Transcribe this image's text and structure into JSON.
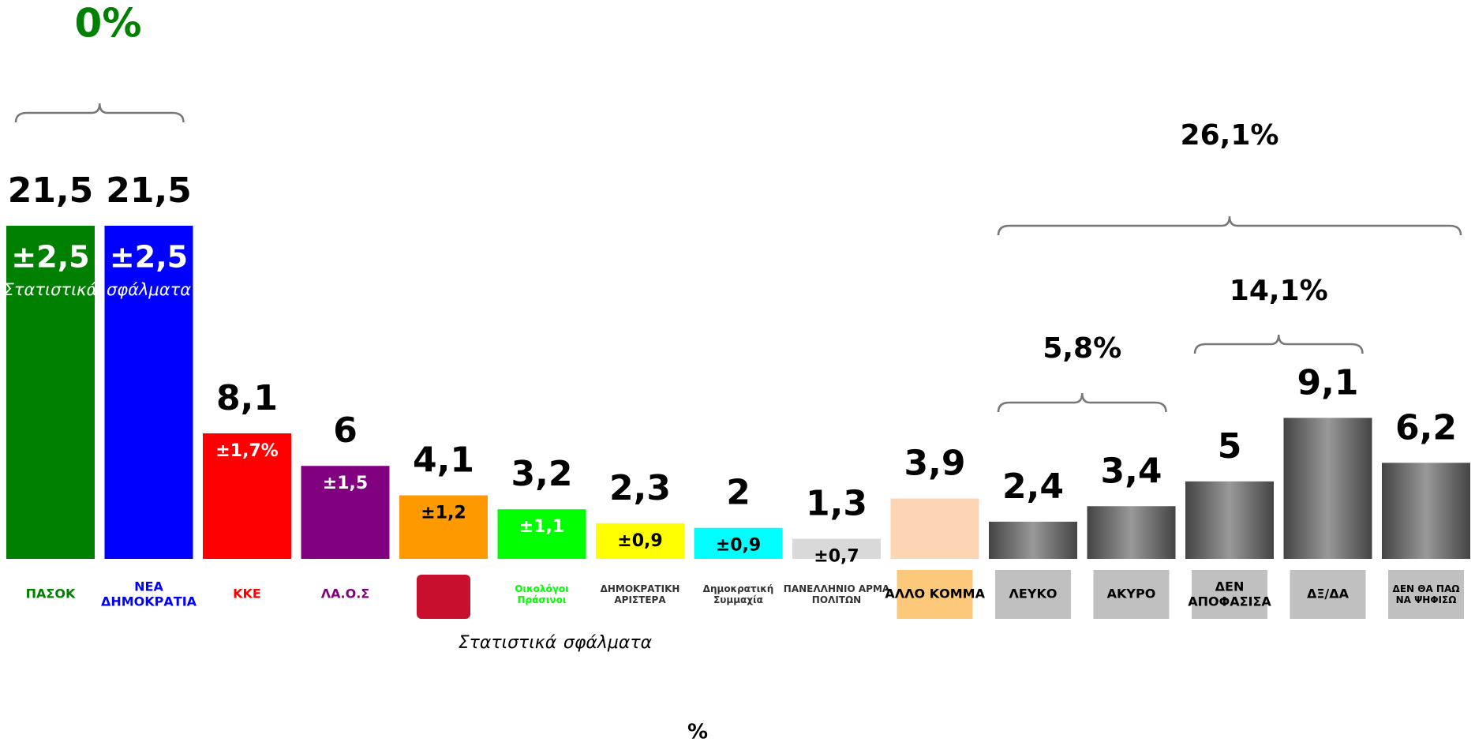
{
  "chart_data": {
    "type": "bar",
    "categories": [
      "ΠΑΣΟΚ",
      "ΝΕΑ ΔΗΜΟΚΡΑΤΙΑ",
      "ΚΚΕ",
      "ΛΑ.Ο.Σ",
      null,
      "Οικολόγοι Πράσινοι",
      "ΔΗΜΟΚΡΑΤΙΚΗ ΑΡΙΣΤΕΡΑ",
      "Δημοκρατική Συμμαχία",
      "ΠΑΝΕΛΛΗΝΙΟ ΑΡΜΑ ΠΟΛΙΤΩΝ",
      "ΆΛΛΟ ΚΟΜΜΑ",
      "ΛΕΥΚΟ",
      "ΑΚΥΡΟ",
      "ΔΕΝ ΑΠΟΦΑΣΙΣΑ",
      "ΔΞ/ΔΑ",
      "ΔΕΝ ΘΑ ΠΑΩ ΝΑ ΨΗΦΙΣΩ"
    ],
    "values": [
      21.5,
      21.5,
      8.1,
      6,
      4.1,
      3.2,
      2.3,
      2,
      1.3,
      3.9,
      2.4,
      3.4,
      5,
      9.1,
      6.2
    ],
    "value_labels": [
      "21,5",
      "21,5",
      "8,1",
      "6",
      "4,1",
      "3,2",
      "2,3",
      "2",
      "1,3",
      "3,9",
      "2,4",
      "3,4",
      "5",
      "9,1",
      "6,2"
    ],
    "error_labels": [
      "±2,5",
      "±2,5",
      "±1,7%",
      "±1,5",
      "±1,2",
      "±1,1",
      "±0,9",
      "±0,9",
      "±0,7",
      null,
      null,
      null,
      null,
      null,
      null
    ],
    "colors": [
      "#008000",
      "#0000ff",
      "#ff0000",
      "#800080",
      "#ff9900",
      "#00ff00",
      "#ffff00",
      "#00ffff",
      "#d9d9d9",
      "#fcd5b4",
      "#666666",
      "#666666",
      "#666666",
      "#666666",
      "#666666"
    ],
    "notes": [
      "Στατιστικά",
      "σφάλματα"
    ],
    "annotations": [
      "0%",
      "26,1%",
      "5,8%",
      "14,1%"
    ],
    "annotation_color": "#008000",
    "x_label": "%"
  }
}
